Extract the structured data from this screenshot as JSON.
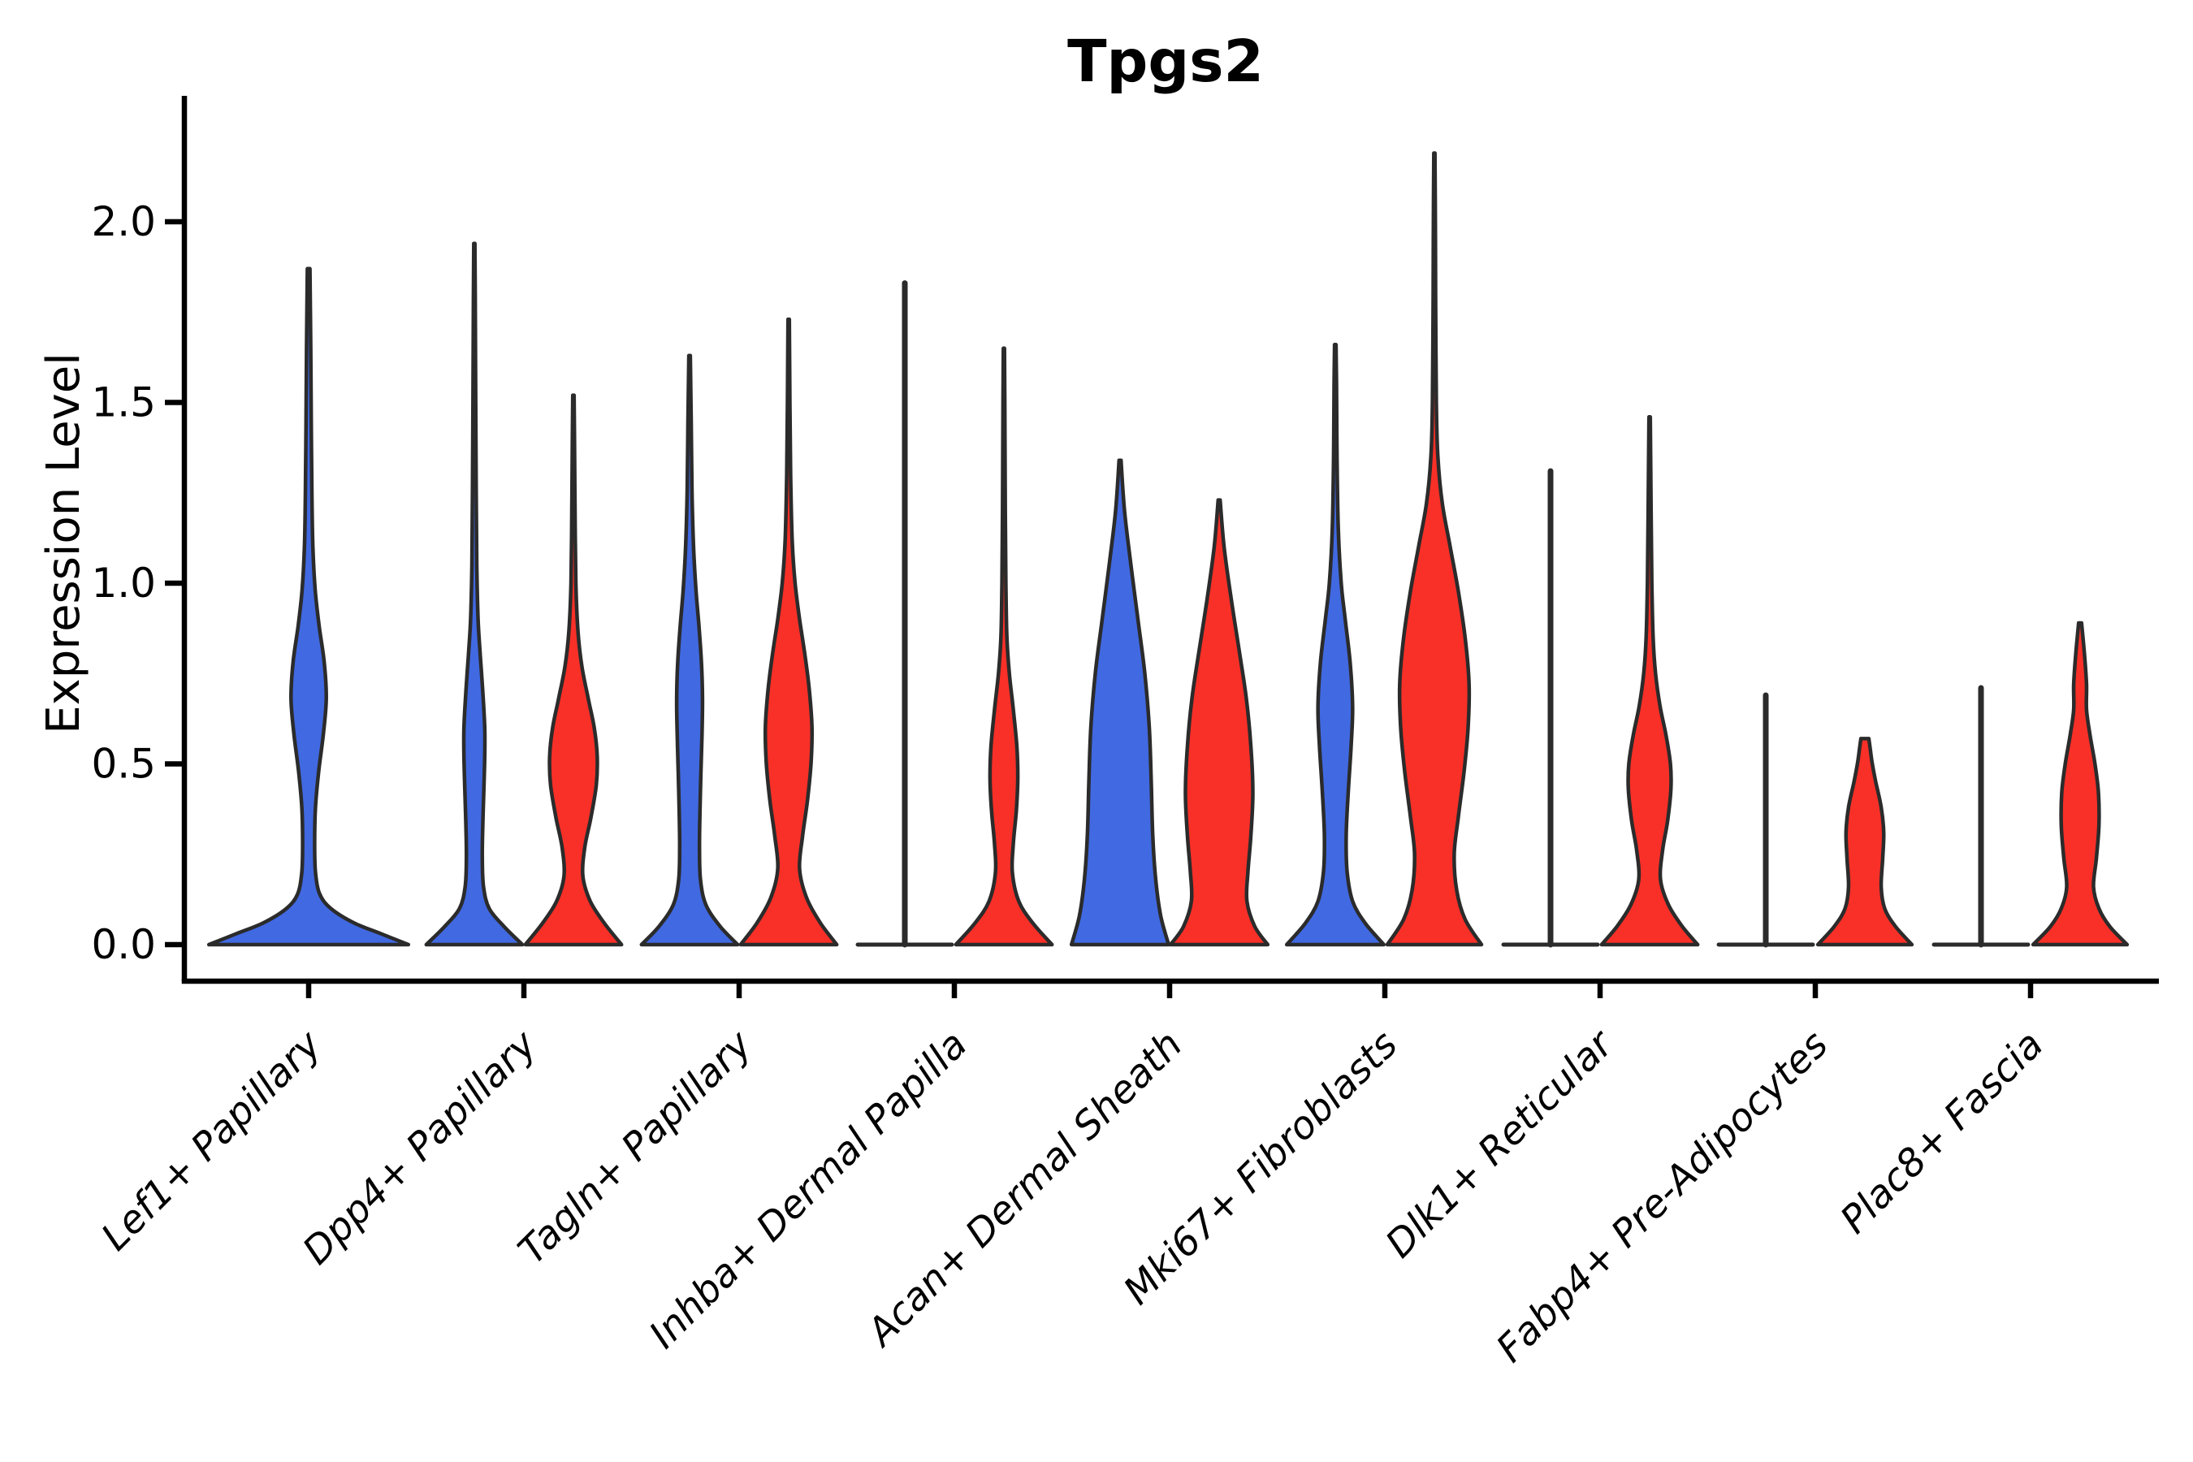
{
  "page": {
    "background": "#ffffff"
  },
  "chart_data": {
    "type": "violin",
    "title": "Tpgs2",
    "ylabel": "Expression Level",
    "xlabel": "",
    "grid": false,
    "legend": "none",
    "ylim": [
      -0.1,
      2.35
    ],
    "ytick_values": [
      0.0,
      0.5,
      1.0,
      1.5,
      2.0
    ],
    "ytick_labels": [
      "0.0",
      "0.5",
      "1.0",
      "1.5",
      "2.0"
    ],
    "categories": [
      "Lef1+ Papillary",
      "Dpp4+ Papillary",
      "Tagln+ Papillary",
      "Inhba+ Dermal Papilla",
      "Acan+ Dermal Sheath",
      "Mki67+ Fibroblasts",
      "Dlk1+ Reticular",
      "Fabp4+ Pre-Adipocytes",
      "Plac8+ Fascia"
    ],
    "series": [
      {
        "key": "blue",
        "color": "#4169E1"
      },
      {
        "key": "red",
        "color": "#F83028"
      }
    ],
    "outline_color": "#2B2B2B",
    "axis_color": "#000000",
    "violins": [
      {
        "category": "Lef1+ Papillary",
        "parts": [
          {
            "series": "blue",
            "kind": "density",
            "span": "full",
            "max": 1.87,
            "profile": [
              [
                0,
                0.99
              ],
              [
                0.03,
                0.72
              ],
              [
                0.06,
                0.45
              ],
              [
                0.1,
                0.22
              ],
              [
                0.14,
                0.11
              ],
              [
                0.2,
                0.068
              ],
              [
                0.28,
                0.06
              ],
              [
                0.38,
                0.068
              ],
              [
                0.48,
                0.1
              ],
              [
                0.58,
                0.145
              ],
              [
                0.68,
                0.175
              ],
              [
                0.78,
                0.155
              ],
              [
                0.88,
                0.105
              ],
              [
                0.98,
                0.065
              ],
              [
                1.1,
                0.042
              ],
              [
                1.25,
                0.032
              ],
              [
                1.45,
                0.026
              ],
              [
                1.65,
                0.021
              ],
              [
                1.87,
                0.013
              ]
            ]
          }
        ]
      },
      {
        "category": "Dpp4+ Papillary",
        "parts": [
          {
            "series": "blue",
            "kind": "density",
            "span": "half",
            "max": 1.94,
            "profile": [
              [
                0,
                0.97
              ],
              [
                0.05,
                0.6
              ],
              [
                0.1,
                0.3
              ],
              [
                0.16,
                0.185
              ],
              [
                0.24,
                0.16
              ],
              [
                0.33,
                0.17
              ],
              [
                0.42,
                0.19
              ],
              [
                0.52,
                0.21
              ],
              [
                0.6,
                0.21
              ],
              [
                0.7,
                0.17
              ],
              [
                0.8,
                0.12
              ],
              [
                0.9,
                0.075
              ],
              [
                1.05,
                0.05
              ],
              [
                1.25,
                0.038
              ],
              [
                1.5,
                0.028
              ],
              [
                1.75,
                0.02
              ],
              [
                1.94,
                0.012
              ]
            ]
          },
          {
            "series": "red",
            "kind": "density",
            "span": "half",
            "max": 1.52,
            "profile": [
              [
                0,
                0.97
              ],
              [
                0.06,
                0.62
              ],
              [
                0.12,
                0.34
              ],
              [
                0.19,
                0.19
              ],
              [
                0.27,
                0.23
              ],
              [
                0.35,
                0.35
              ],
              [
                0.44,
                0.46
              ],
              [
                0.52,
                0.48
              ],
              [
                0.6,
                0.42
              ],
              [
                0.68,
                0.3
              ],
              [
                0.77,
                0.17
              ],
              [
                0.87,
                0.09
              ],
              [
                1.0,
                0.05
              ],
              [
                1.2,
                0.032
              ],
              [
                1.4,
                0.022
              ],
              [
                1.52,
                0.013
              ]
            ]
          }
        ]
      },
      {
        "category": "Tagln+ Papillary",
        "parts": [
          {
            "series": "blue",
            "kind": "density",
            "span": "half",
            "max": 1.63,
            "profile": [
              [
                0,
                0.97
              ],
              [
                0.05,
                0.62
              ],
              [
                0.11,
                0.33
              ],
              [
                0.18,
                0.22
              ],
              [
                0.27,
                0.2
              ],
              [
                0.37,
                0.21
              ],
              [
                0.48,
                0.23
              ],
              [
                0.58,
                0.25
              ],
              [
                0.68,
                0.26
              ],
              [
                0.78,
                0.24
              ],
              [
                0.88,
                0.19
              ],
              [
                0.98,
                0.13
              ],
              [
                1.1,
                0.08
              ],
              [
                1.25,
                0.05
              ],
              [
                1.45,
                0.032
              ],
              [
                1.63,
                0.015
              ]
            ]
          },
          {
            "series": "red",
            "kind": "density",
            "span": "half",
            "max": 1.73,
            "profile": [
              [
                0,
                0.97
              ],
              [
                0.06,
                0.64
              ],
              [
                0.13,
                0.36
              ],
              [
                0.21,
                0.22
              ],
              [
                0.3,
                0.28
              ],
              [
                0.4,
                0.38
              ],
              [
                0.5,
                0.45
              ],
              [
                0.6,
                0.47
              ],
              [
                0.7,
                0.42
              ],
              [
                0.8,
                0.33
              ],
              [
                0.9,
                0.22
              ],
              [
                1.0,
                0.13
              ],
              [
                1.12,
                0.07
              ],
              [
                1.3,
                0.04
              ],
              [
                1.5,
                0.025
              ],
              [
                1.73,
                0.013
              ]
            ]
          }
        ]
      },
      {
        "category": "Inhba+ Dermal Papilla",
        "parts": [
          {
            "series": "blue",
            "kind": "spike",
            "span": "half",
            "max": 1.83,
            "baseline_half": 0.95
          },
          {
            "series": "red",
            "kind": "density",
            "span": "half",
            "max": 1.65,
            "profile": [
              [
                0,
                0.97
              ],
              [
                0.06,
                0.58
              ],
              [
                0.12,
                0.3
              ],
              [
                0.2,
                0.17
              ],
              [
                0.28,
                0.19
              ],
              [
                0.37,
                0.25
              ],
              [
                0.46,
                0.28
              ],
              [
                0.55,
                0.26
              ],
              [
                0.65,
                0.19
              ],
              [
                0.75,
                0.11
              ],
              [
                0.85,
                0.06
              ],
              [
                1.0,
                0.04
              ],
              [
                1.2,
                0.028
              ],
              [
                1.45,
                0.02
              ],
              [
                1.65,
                0.012
              ]
            ]
          }
        ]
      },
      {
        "category": "Acan+ Dermal Sheath",
        "parts": [
          {
            "series": "blue",
            "kind": "density",
            "span": "half",
            "max": 1.34,
            "profile": [
              [
                0,
                0.98
              ],
              [
                0.08,
                0.82
              ],
              [
                0.18,
                0.72
              ],
              [
                0.3,
                0.66
              ],
              [
                0.45,
                0.63
              ],
              [
                0.6,
                0.59
              ],
              [
                0.75,
                0.5
              ],
              [
                0.9,
                0.36
              ],
              [
                1.05,
                0.22
              ],
              [
                1.2,
                0.09
              ],
              [
                1.34,
                0.02
              ]
            ]
          },
          {
            "series": "red",
            "kind": "density",
            "span": "half",
            "max": 1.23,
            "profile": [
              [
                0,
                0.98
              ],
              [
                0.05,
                0.72
              ],
              [
                0.12,
                0.56
              ],
              [
                0.2,
                0.58
              ],
              [
                0.3,
                0.64
              ],
              [
                0.42,
                0.68
              ],
              [
                0.55,
                0.64
              ],
              [
                0.68,
                0.55
              ],
              [
                0.8,
                0.42
              ],
              [
                0.95,
                0.25
              ],
              [
                1.1,
                0.1
              ],
              [
                1.23,
                0.02
              ]
            ]
          }
        ]
      },
      {
        "category": "Mki67+ Fibroblasts",
        "parts": [
          {
            "series": "blue",
            "kind": "density",
            "span": "half",
            "max": 1.66,
            "profile": [
              [
                0,
                0.98
              ],
              [
                0.06,
                0.6
              ],
              [
                0.12,
                0.35
              ],
              [
                0.2,
                0.24
              ],
              [
                0.3,
                0.22
              ],
              [
                0.42,
                0.26
              ],
              [
                0.55,
                0.32
              ],
              [
                0.66,
                0.35
              ],
              [
                0.78,
                0.3
              ],
              [
                0.9,
                0.2
              ],
              [
                1.0,
                0.12
              ],
              [
                1.15,
                0.06
              ],
              [
                1.35,
                0.035
              ],
              [
                1.55,
                0.025
              ],
              [
                1.66,
                0.015
              ]
            ]
          },
          {
            "series": "red",
            "kind": "density",
            "span": "half",
            "max": 2.19,
            "profile": [
              [
                0,
                0.95
              ],
              [
                0.07,
                0.62
              ],
              [
                0.15,
                0.45
              ],
              [
                0.25,
                0.4
              ],
              [
                0.35,
                0.48
              ],
              [
                0.48,
                0.6
              ],
              [
                0.6,
                0.68
              ],
              [
                0.72,
                0.7
              ],
              [
                0.85,
                0.62
              ],
              [
                0.98,
                0.48
              ],
              [
                1.1,
                0.32
              ],
              [
                1.22,
                0.16
              ],
              [
                1.35,
                0.07
              ],
              [
                1.5,
                0.04
              ],
              [
                1.8,
                0.025
              ],
              [
                2.0,
                0.02
              ],
              [
                2.19,
                0.012
              ]
            ]
          }
        ]
      },
      {
        "category": "Dlk1+ Reticular",
        "parts": [
          {
            "series": "blue",
            "kind": "spike",
            "span": "half",
            "max": 1.31,
            "baseline_half": 0.95
          },
          {
            "series": "red",
            "kind": "density",
            "span": "half",
            "max": 1.46,
            "profile": [
              [
                0,
                0.97
              ],
              [
                0.05,
                0.66
              ],
              [
                0.11,
                0.38
              ],
              [
                0.18,
                0.22
              ],
              [
                0.26,
                0.26
              ],
              [
                0.34,
                0.36
              ],
              [
                0.43,
                0.43
              ],
              [
                0.5,
                0.42
              ],
              [
                0.58,
                0.33
              ],
              [
                0.66,
                0.21
              ],
              [
                0.75,
                0.12
              ],
              [
                0.85,
                0.07
              ],
              [
                1.0,
                0.045
              ],
              [
                1.2,
                0.03
              ],
              [
                1.46,
                0.013
              ]
            ]
          }
        ]
      },
      {
        "category": "Fabp4+ Pre-Adipocytes",
        "parts": [
          {
            "series": "blue",
            "kind": "spike",
            "span": "half",
            "max": 0.69,
            "baseline_half": 0.95
          },
          {
            "series": "red",
            "kind": "density",
            "span": "half",
            "max": 0.57,
            "profile": [
              [
                0,
                0.95
              ],
              [
                0.05,
                0.62
              ],
              [
                0.1,
                0.4
              ],
              [
                0.16,
                0.33
              ],
              [
                0.24,
                0.36
              ],
              [
                0.31,
                0.38
              ],
              [
                0.38,
                0.33
              ],
              [
                0.45,
                0.22
              ],
              [
                0.5,
                0.15
              ],
              [
                0.54,
                0.11
              ],
              [
                0.57,
                0.08
              ]
            ]
          }
        ]
      },
      {
        "category": "Plac8+ Fascia",
        "parts": [
          {
            "series": "blue",
            "kind": "spike",
            "span": "half",
            "max": 0.71,
            "baseline_half": 0.95
          },
          {
            "series": "red",
            "kind": "density",
            "span": "half",
            "max": 0.89,
            "profile": [
              [
                0,
                0.95
              ],
              [
                0.05,
                0.6
              ],
              [
                0.1,
                0.38
              ],
              [
                0.16,
                0.27
              ],
              [
                0.24,
                0.33
              ],
              [
                0.33,
                0.38
              ],
              [
                0.42,
                0.37
              ],
              [
                0.5,
                0.3
              ],
              [
                0.58,
                0.2
              ],
              [
                0.65,
                0.13
              ],
              [
                0.72,
                0.13
              ],
              [
                0.8,
                0.09
              ],
              [
                0.89,
                0.03
              ]
            ]
          }
        ]
      }
    ]
  }
}
